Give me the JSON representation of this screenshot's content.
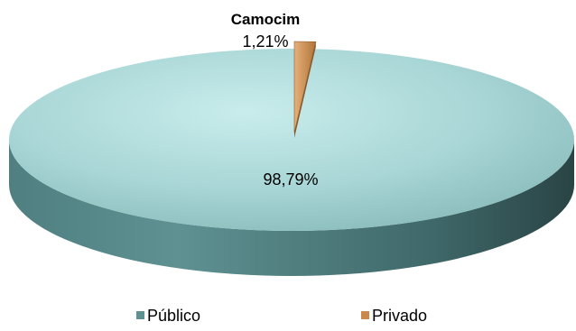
{
  "chart_data": {
    "type": "pie",
    "title": "Camocim",
    "categories": [
      "Público",
      "Privado"
    ],
    "values": [
      98.79,
      1.21
    ],
    "data_labels": [
      "98,79%",
      "1,21%"
    ],
    "colors": {
      "Público": "#a9d6d6",
      "Privado": "#d49a5e"
    },
    "legend_position": "bottom",
    "style": "3d-pie"
  }
}
